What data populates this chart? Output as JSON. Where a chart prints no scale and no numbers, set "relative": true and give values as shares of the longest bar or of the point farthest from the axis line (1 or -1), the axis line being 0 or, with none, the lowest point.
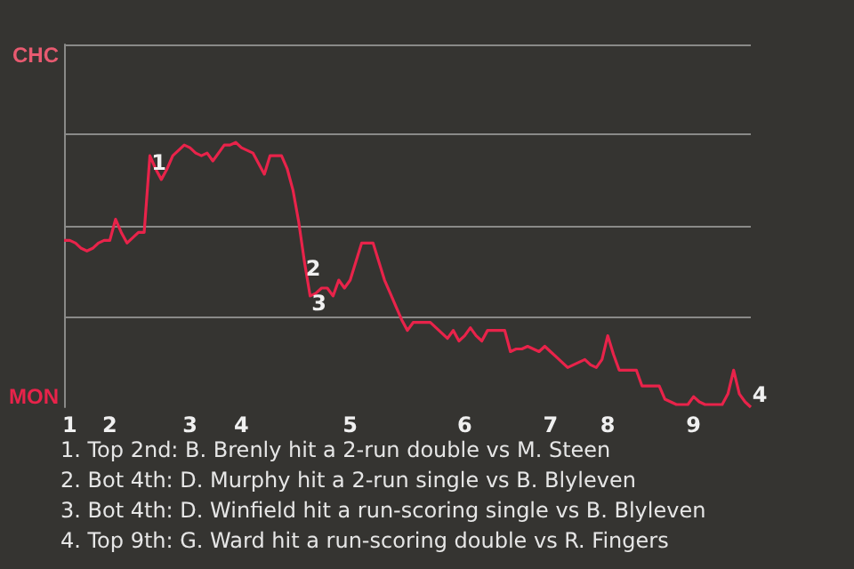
{
  "chart_data": {
    "type": "line",
    "relative": true,
    "categories": [
      null,
      "1",
      null,
      null,
      null,
      null,
      null,
      null,
      "2",
      null,
      null,
      null,
      null,
      null,
      null,
      null,
      null,
      null,
      null,
      null,
      null,
      null,
      "3",
      null,
      null,
      null,
      null,
      null,
      null,
      null,
      null,
      "4",
      null,
      null,
      null,
      null,
      null,
      null,
      null,
      null,
      null,
      null,
      null,
      null,
      null,
      null,
      null,
      null,
      null,
      null,
      "5",
      null,
      null,
      null,
      null,
      null,
      null,
      null,
      null,
      null,
      null,
      null,
      null,
      null,
      null,
      null,
      null,
      null,
      null,
      null,
      "6",
      null,
      null,
      null,
      null,
      null,
      null,
      null,
      null,
      null,
      null,
      null,
      null,
      null,
      null,
      "7",
      null,
      null,
      null,
      null,
      null,
      null,
      null,
      null,
      null,
      "8",
      null,
      null,
      null,
      null,
      null,
      null,
      null,
      null,
      null,
      null,
      null,
      null,
      null,
      null,
      "9",
      null,
      null,
      null,
      null,
      null,
      null,
      null,
      null,
      null,
      null
    ],
    "grid": false,
    "marker": "none",
    "line_style": "solid",
    "series": [
      {
        "color": "#e8234a",
        "values": [
          0.63,
          0.63,
          0.62,
          0.6,
          0.59,
          0.6,
          0.62,
          0.63,
          0.63,
          0.71,
          0.66,
          0.62,
          0.64,
          0.66,
          0.66,
          0.95,
          0.9,
          0.86,
          0.9,
          0.95,
          0.97,
          0.99,
          0.98,
          0.96,
          0.95,
          0.96,
          0.93,
          0.96,
          0.99,
          0.99,
          1,
          0.98,
          0.97,
          0.96,
          0.92,
          0.88,
          0.95,
          0.95,
          0.95,
          0.9,
          0.82,
          0.7,
          0.55,
          0.42,
          0.43,
          0.45,
          0.45,
          0.42,
          0.48,
          0.45,
          0.48,
          0.55,
          0.62,
          0.62,
          0.62,
          0.55,
          0.48,
          0.43,
          0.38,
          0.33,
          0.29,
          0.32,
          0.32,
          0.32,
          0.32,
          0.3,
          0.28,
          0.26,
          0.29,
          0.25,
          0.27,
          0.3,
          0.27,
          0.25,
          0.29,
          0.29,
          0.29,
          0.29,
          0.21,
          0.22,
          0.22,
          0.23,
          0.22,
          0.21,
          0.23,
          0.21,
          0.19,
          0.17,
          0.15,
          0.16,
          0.17,
          0.18,
          0.16,
          0.15,
          0.18,
          0.27,
          0.2,
          0.14,
          0.14,
          0.14,
          0.14,
          0.08,
          0.08,
          0.08,
          0.08,
          0.03,
          0.02,
          0.01,
          0.01,
          0.01,
          0.04,
          0.02,
          0.01,
          0.01,
          0.01,
          0.01,
          0.05,
          0.14,
          0.05,
          0.02,
          0
        ],
        "name": null
      }
    ],
    "ref_lines": [
      {
        "axis": "y",
        "value": 0.34,
        "color": "#8a8a88"
      },
      {
        "axis": "y",
        "value": 0.68,
        "color": "#8a8a88"
      },
      {
        "axis": "y",
        "value": 1.03,
        "color": "#8a8a88"
      },
      {
        "axis": "y",
        "value": 1.37,
        "color": "#8a8a88"
      }
    ],
    "annotations": [
      "CHC",
      "MON",
      {
        "text": "1",
        "y": 0.95
      },
      {
        "text": "2",
        "y": 0.55
      },
      {
        "text": "3",
        "y": 0.42
      },
      {
        "text": "4",
        "y": 0
      },
      "1. Top 2nd: B. Brenly hit a 2-run double vs M. Steen",
      "2. Bot 4th: D. Murphy hit a 2-run single vs B. Blyleven",
      "3. Bot 4th: D. Winfield hit a run-scoring single vs B. Blyleven",
      "4. Top 9th: G. Ward hit a run-scoring double vs R. Fingers"
    ]
  }
}
